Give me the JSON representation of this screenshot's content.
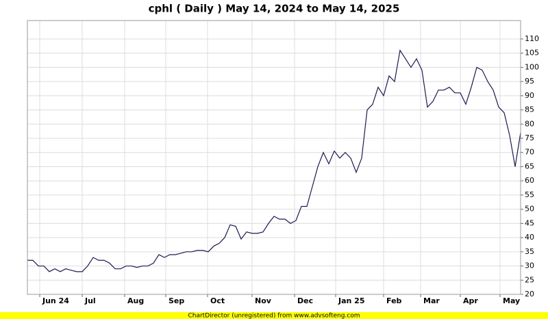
{
  "chart_data": {
    "type": "line",
    "title": "cphl ( Daily ) May 14, 2024 to May 14, 2025",
    "footer": "ChartDirector (unregistered) from www.advsofteng.com",
    "color": "#1a1a50",
    "values": [
      32,
      32,
      30,
      30,
      28,
      29,
      28,
      29,
      28.5,
      28,
      28,
      30,
      33,
      32,
      32,
      31,
      29,
      29,
      30,
      30,
      29.5,
      30,
      30,
      31,
      34,
      33,
      34,
      34,
      34.5,
      35,
      35,
      35.5,
      35.5,
      35,
      37,
      38,
      40,
      44.5,
      44,
      39.5,
      42,
      41.5,
      41.5,
      42,
      45,
      47.5,
      46.5,
      46.5,
      45,
      46,
      51,
      51,
      58,
      65,
      70,
      66,
      70.5,
      68,
      70,
      68,
      63,
      68,
      85,
      87,
      93,
      90,
      97,
      95,
      106,
      103,
      100,
      103,
      99,
      86,
      88,
      92,
      92,
      93,
      91,
      91,
      87,
      93,
      100,
      99,
      95,
      92,
      86,
      84,
      76,
      65,
      77
    ],
    "xlim": [
      0,
      90
    ],
    "xticks": [
      {
        "value": 2.25,
        "label": "Jun 24"
      },
      {
        "value": 10,
        "label": "Jul"
      },
      {
        "value": 17.75,
        "label": "Aug"
      },
      {
        "value": 25.25,
        "label": "Sep"
      },
      {
        "value": 32.875,
        "label": "Oct"
      },
      {
        "value": 41,
        "label": "Nov"
      },
      {
        "value": 48.75,
        "label": "Dec"
      },
      {
        "value": 56.25,
        "label": "Jan 25"
      },
      {
        "value": 65,
        "label": "Feb"
      },
      {
        "value": 71.75,
        "label": "Mar"
      },
      {
        "value": 79,
        "label": "Apr"
      },
      {
        "value": 86.25,
        "label": "May"
      }
    ],
    "ylim": [
      20,
      116.5
    ],
    "yticks": [
      20,
      25,
      30,
      35,
      40,
      45,
      50,
      55,
      60,
      65,
      70,
      75,
      80,
      85,
      90,
      95,
      100,
      105,
      110
    ],
    "grid": true
  }
}
